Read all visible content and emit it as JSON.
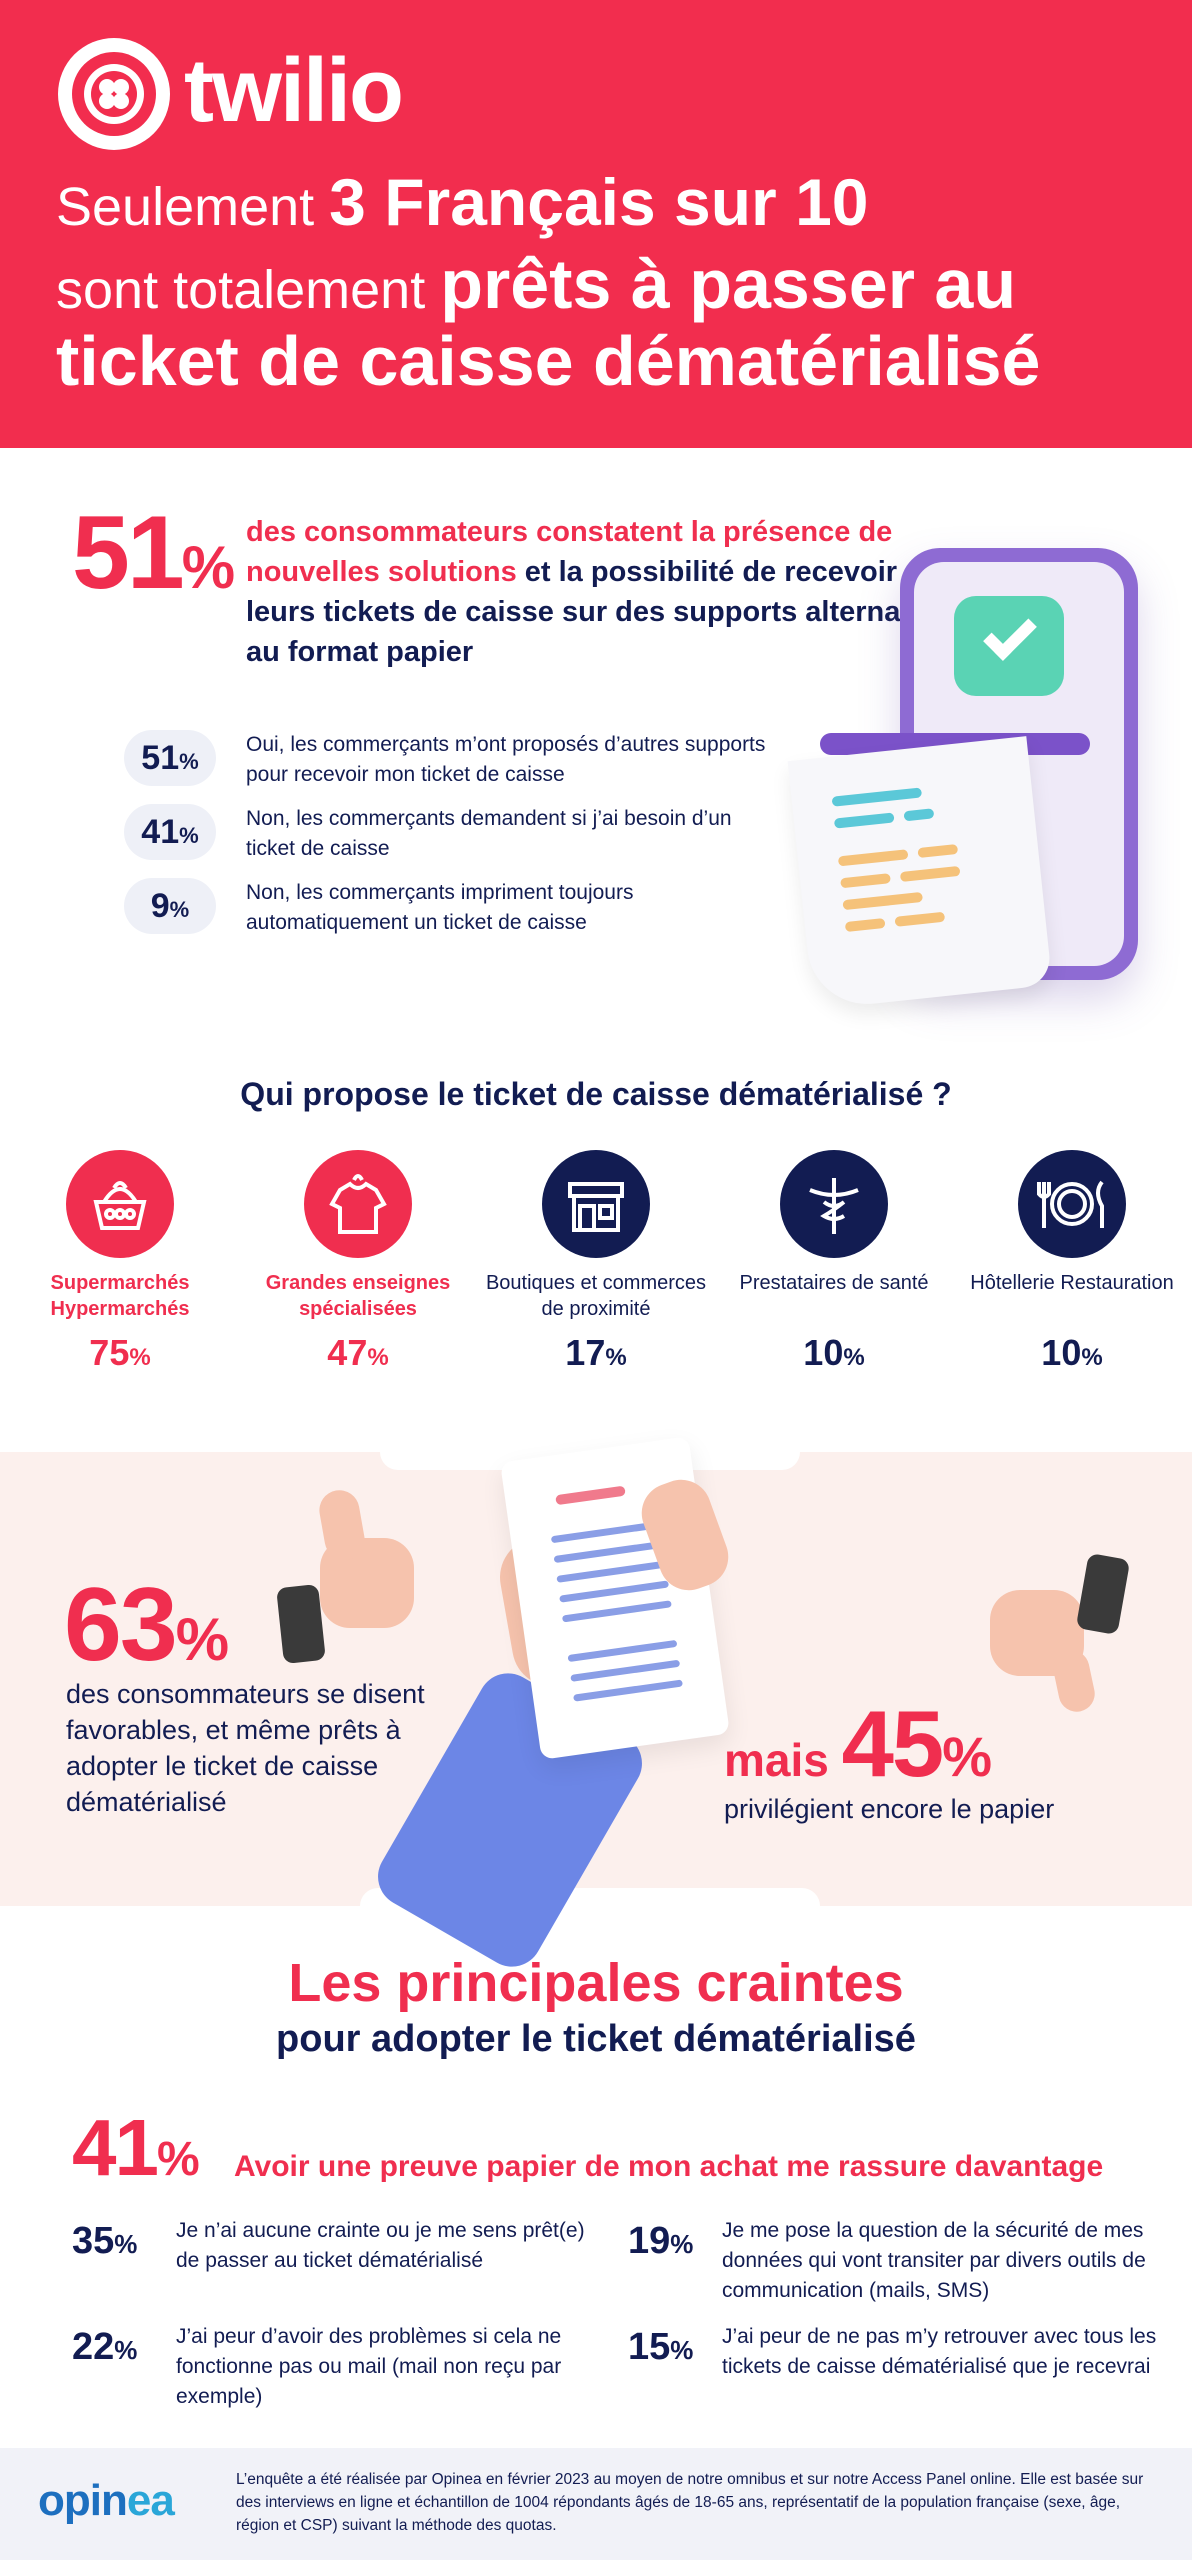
{
  "header": {
    "brand": "twilio",
    "line1_a": "Seulement ",
    "line1_b": "3 Français sur 10",
    "line2_a": "sont totalement ",
    "line2_b": "prêts à passer au",
    "line3": "ticket de caisse dématérialisé"
  },
  "section51": {
    "big": "51",
    "pct": "%",
    "text_red": "des consommateurs constatent la présence de nouvelles solutions",
    "text_navy": " et la possibilité de recevoir leurs tickets de caisse sur des supports alternatifs au format papier",
    "items": [
      {
        "value": "51",
        "pct": "%",
        "text": "Oui, les commerçants m’ont proposés d’autres supports pour recevoir mon ticket de caisse"
      },
      {
        "value": "41",
        "pct": "%",
        "text": "Non, les commerçants demandent si j’ai besoin d’un ticket de caisse"
      },
      {
        "value": "9",
        "pct": "%",
        "text": "Non, les commerçants impriment toujours automatiquement un ticket de caisse"
      }
    ]
  },
  "who": {
    "title": "Qui propose le ticket de caisse dématérialisé ?",
    "categories": [
      {
        "label": "Supermarchés Hypermarchés",
        "value": "75",
        "pct": "%",
        "icon": "basket-icon",
        "color": "#f02e4f"
      },
      {
        "label": "Grandes enseignes spécialisées",
        "value": "47",
        "pct": "%",
        "icon": "shirt-icon",
        "color": "#f02e4f"
      },
      {
        "label": "Boutiques et commerces de proximité",
        "value": "17",
        "pct": "%",
        "icon": "storefront-icon",
        "color": "#121c52"
      },
      {
        "label": "Prestataires de santé",
        "value": "10",
        "pct": "%",
        "icon": "caduceus-icon",
        "color": "#121c52"
      },
      {
        "label": "Hôtellerie Restauration",
        "value": "10",
        "pct": "%",
        "icon": "plate-cutlery-icon",
        "color": "#121c52"
      }
    ]
  },
  "favor": {
    "big": "63",
    "pct": "%",
    "text": "des consommateurs se disent favorables, et même prêts à adopter le ticket de caisse dématérialisé",
    "mais": "mais ",
    "big2": "45",
    "pct2": "%",
    "text2": "privilégient encore le papier"
  },
  "fears": {
    "title": "Les principales craintes",
    "subtitle": "pour adopter le ticket dématérialisé",
    "top_value": "41",
    "top_pct": "%",
    "top_text": "Avoir une preuve papier de mon achat me rassure davantage",
    "items": [
      {
        "value": "35",
        "pct": "%",
        "text": "Je n’ai aucune crainte ou je me sens prêt(e) de passer au ticket dématérialisé"
      },
      {
        "value": "19",
        "pct": "%",
        "text": "Je me pose la question de la sécurité de mes données qui vont transiter par divers outils de communication (mails, SMS)"
      },
      {
        "value": "22",
        "pct": "%",
        "text": "J’ai peur d’avoir des problèmes si cela ne fonctionne pas ou mail (mail non reçu par exemple)"
      },
      {
        "value": "15",
        "pct": "%",
        "text": "J’ai peur de ne pas m’y retrouver avec tous les tickets de caisse dématérialisé que je recevrai"
      }
    ]
  },
  "footer": {
    "logo_a": "opin",
    "logo_b": "ea",
    "note": "L’enquête a été réalisée par Opinea en février 2023 au moyen de notre omnibus et sur notre Access Panel online. Elle est basée sur des interviews en ligne et échantillon de 1004 répondants âgés de 18-65 ans, représentatif de la population française (sexe, âge, région et CSP) suivant la méthode des quotas."
  }
}
